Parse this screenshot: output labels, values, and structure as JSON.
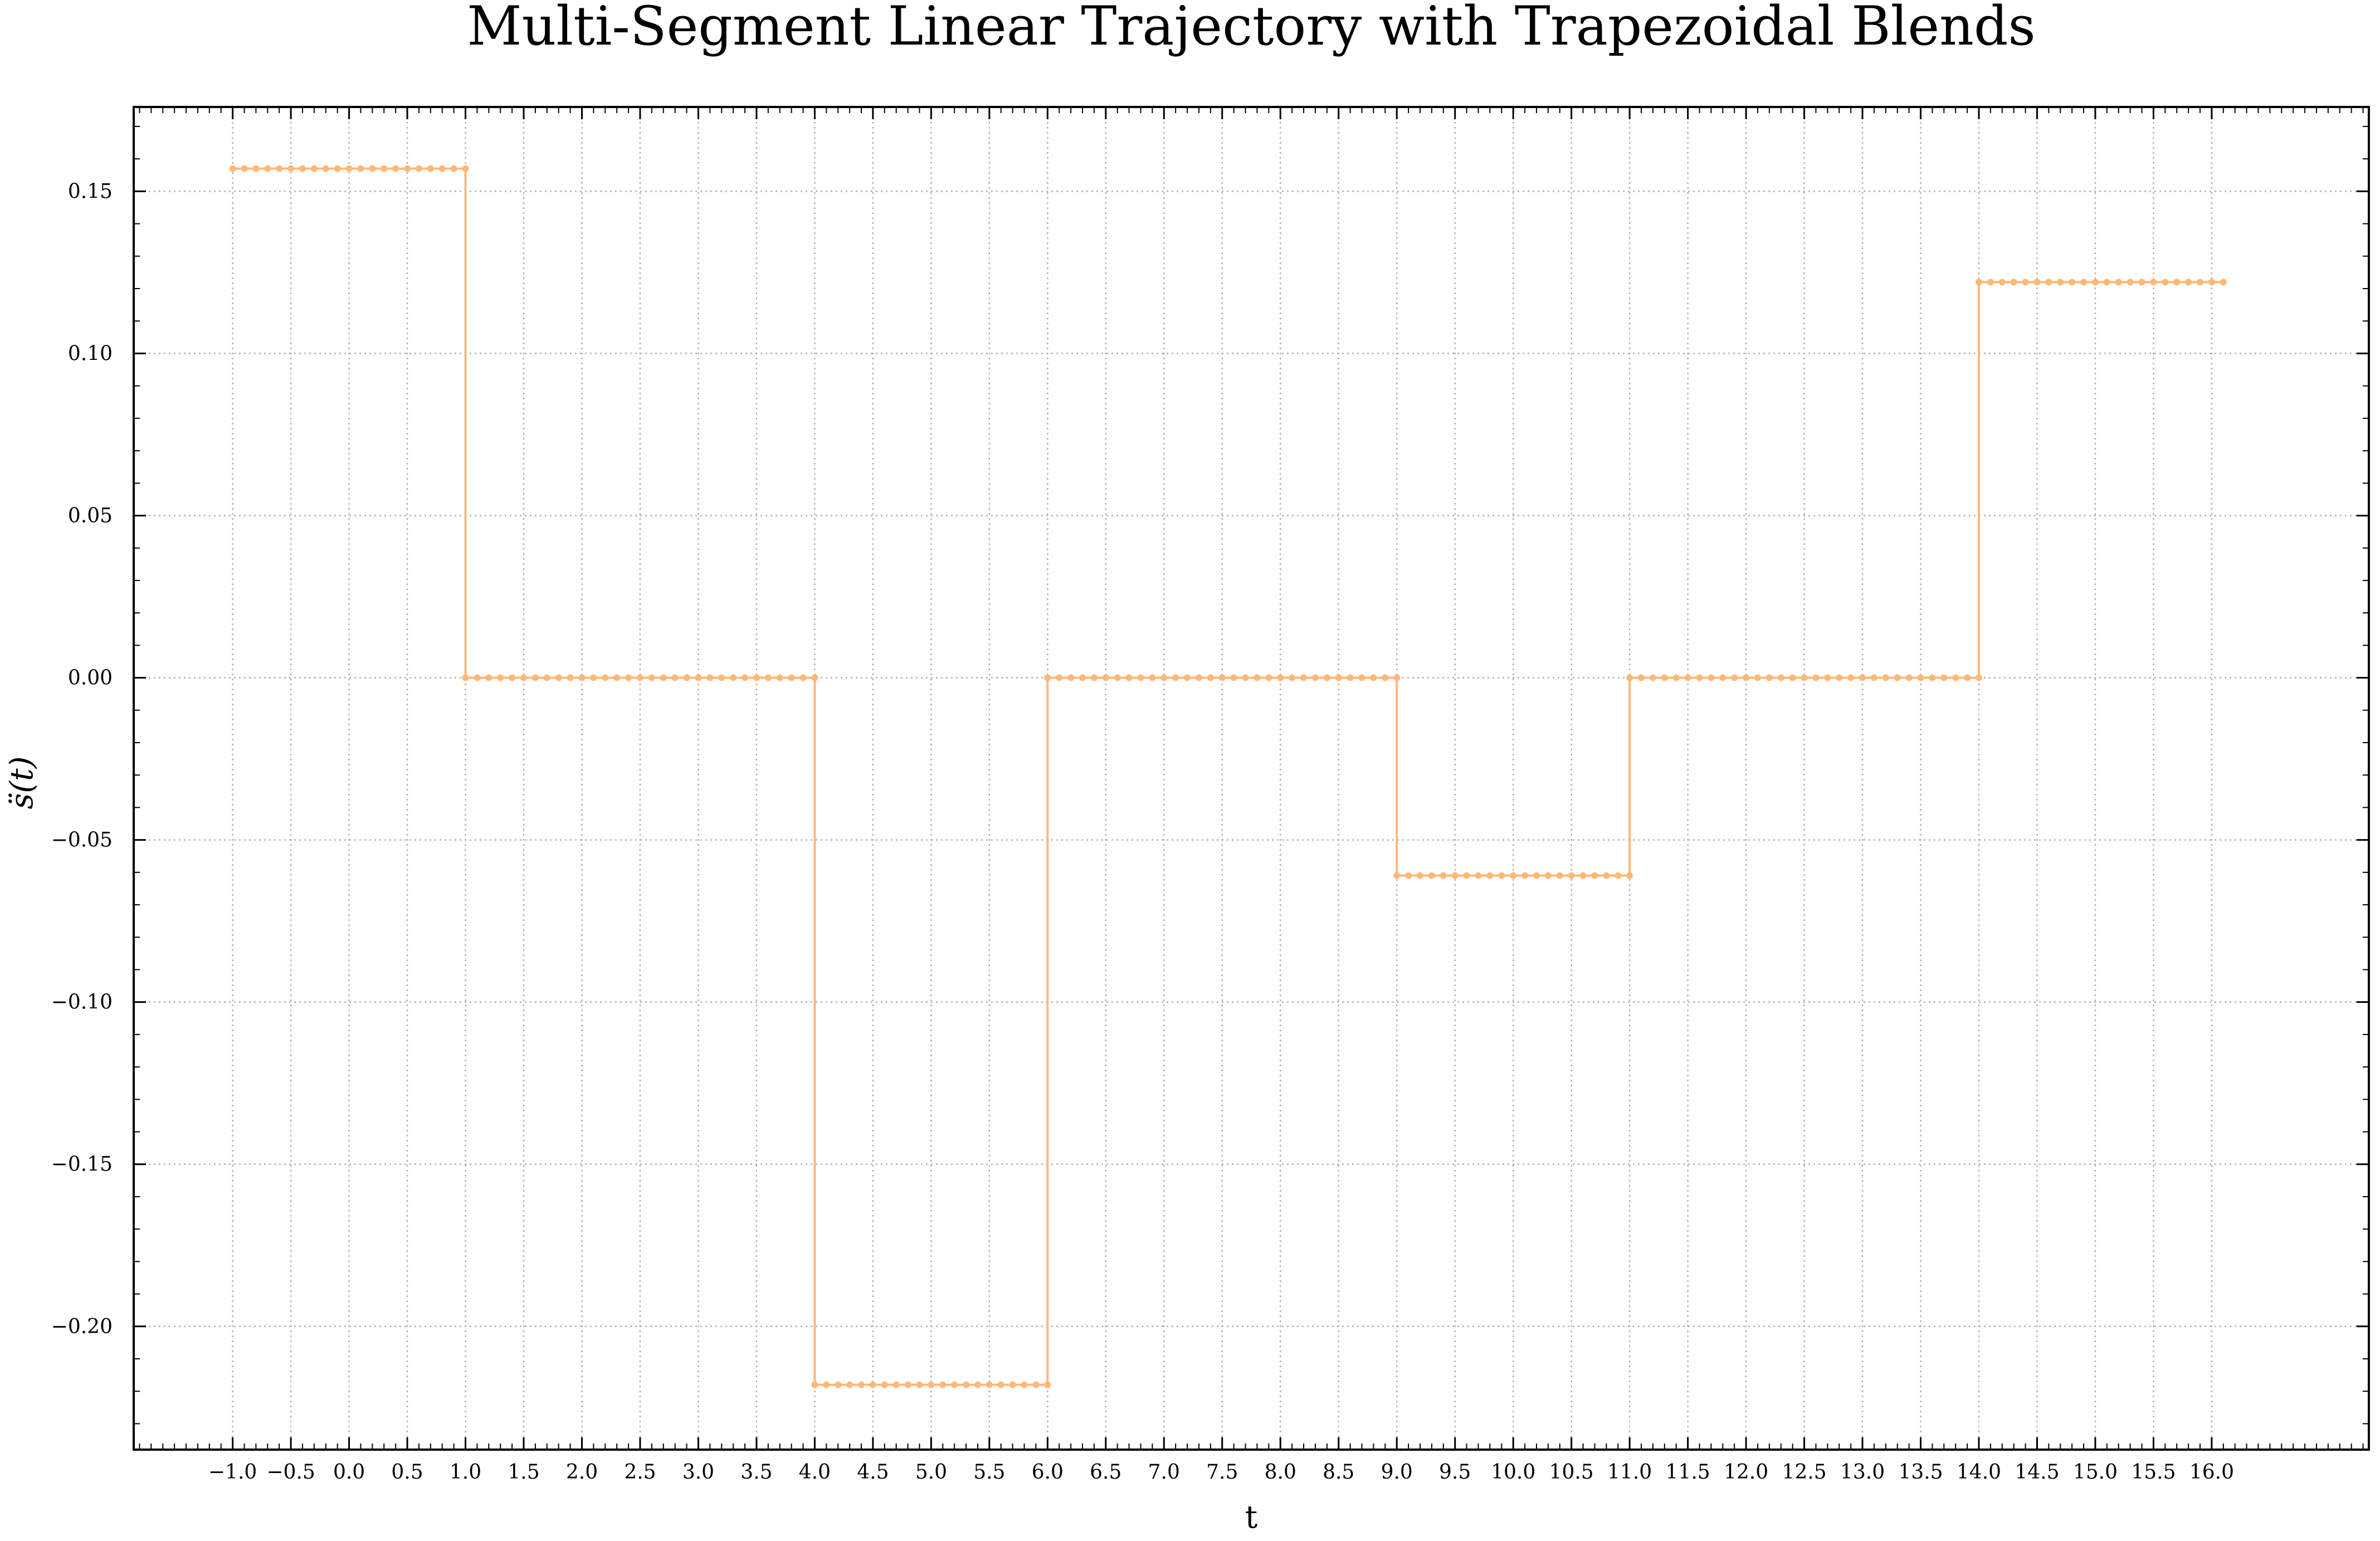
{
  "chart_data": {
    "type": "line",
    "title": "Multi-Segment Linear Trajectory with Trapezoidal Blends",
    "xlabel": "t",
    "ylabel": "s̈(t)",
    "xlim": [
      -1.85,
      17.35
    ],
    "ylim": [
      -0.238,
      0.176
    ],
    "x_ticks": [
      -1.0,
      -0.5,
      0.0,
      0.5,
      1.0,
      1.5,
      2.0,
      2.5,
      3.0,
      3.5,
      4.0,
      4.5,
      5.0,
      5.5,
      6.0,
      6.5,
      7.0,
      7.5,
      8.0,
      8.5,
      9.0,
      9.5,
      10.0,
      10.5,
      11.0,
      11.5,
      12.0,
      12.5,
      13.0,
      13.5,
      14.0,
      14.5,
      15.0,
      15.5,
      16.0
    ],
    "x_tick_labels": [
      "−1.0",
      "−0.5",
      "0.0",
      "0.5",
      "1.0",
      "1.5",
      "2.0",
      "2.5",
      "3.0",
      "3.5",
      "4.0",
      "4.5",
      "5.0",
      "5.5",
      "6.0",
      "6.5",
      "7.0",
      "7.5",
      "8.0",
      "8.5",
      "9.0",
      "9.5",
      "10.0",
      "10.5",
      "11.0",
      "11.5",
      "12.0",
      "12.5",
      "13.0",
      "13.5",
      "14.0",
      "14.5",
      "15.0",
      "15.5",
      "16.0"
    ],
    "y_ticks": [
      0.15,
      0.1,
      0.05,
      0.0,
      -0.05,
      -0.1,
      -0.15,
      -0.2
    ],
    "y_tick_labels": [
      "0.15",
      "0.10",
      "0.05",
      "0.00",
      "−0.05",
      "−0.10",
      "−0.15",
      "−0.20"
    ],
    "grid": true,
    "legend": "none",
    "series_color": "#ffb877",
    "series": [
      {
        "segments": [
          {
            "x_start": -1.0,
            "x_end": 1.0,
            "y": 0.157
          },
          {
            "x_start": 1.0,
            "x_end": 4.0,
            "y": 0.0
          },
          {
            "x_start": 4.0,
            "x_end": 6.0,
            "y": -0.218
          },
          {
            "x_start": 6.0,
            "x_end": 9.0,
            "y": 0.0
          },
          {
            "x_start": 9.0,
            "x_end": 11.0,
            "y": -0.061
          },
          {
            "x_start": 11.0,
            "x_end": 14.0,
            "y": 0.0
          },
          {
            "x_start": 14.0,
            "x_end": 16.1,
            "y": 0.122
          }
        ],
        "sample_step": 0.1
      }
    ]
  }
}
